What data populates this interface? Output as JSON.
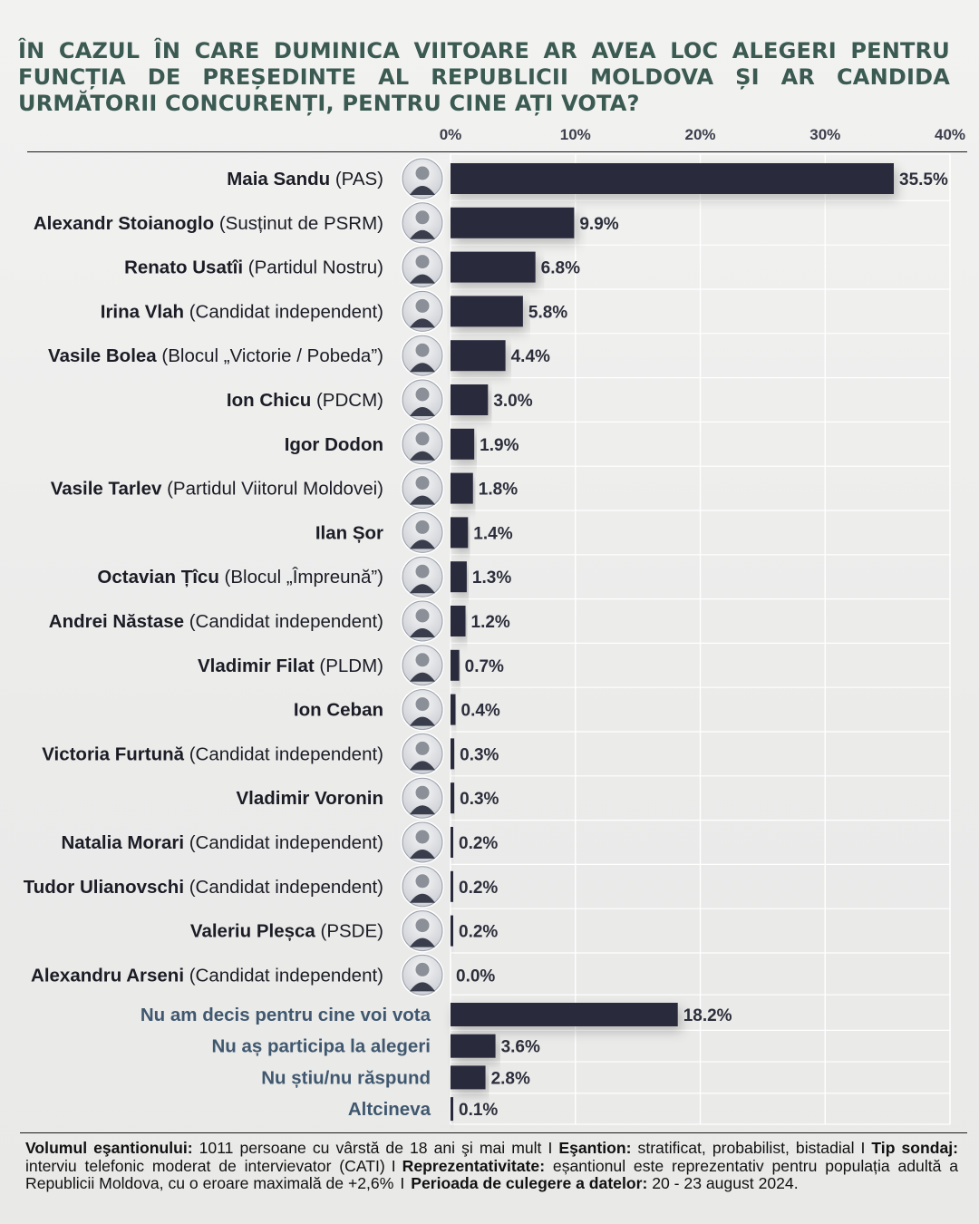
{
  "title": "ÎN CAZUL ÎN CARE DUMINICA VIITOARE AR AVEA LOC ALEGERI PENTRU FUNCȚIA DE PREȘEDINTE AL REPUBLICII MOLDOVA ȘI AR CANDIDA URMĂTORII CONCURENȚI, PENTRU CINE AȚI VOTA?",
  "colors": {
    "bar": "#292b3d",
    "title": "#3b5a52",
    "grid": "#ffffff"
  },
  "chart_data": {
    "type": "bar",
    "orientation": "horizontal",
    "xlim": [
      0,
      40
    ],
    "x_ticks": [
      "0%",
      "10%",
      "20%",
      "30%",
      "40%"
    ],
    "grid": true,
    "categories": [
      {
        "name": "Maia Sandu",
        "party": "(PAS)",
        "value": 35.5,
        "label": "35.5%",
        "photo": true
      },
      {
        "name": "Alexandr Stoianoglo",
        "party": "(Susținut de PSRM)",
        "value": 9.9,
        "label": "9.9%",
        "photo": true
      },
      {
        "name": "Renato Usatîi",
        "party": "(Partidul Nostru)",
        "value": 6.8,
        "label": "6.8%",
        "photo": true
      },
      {
        "name": "Irina Vlah",
        "party": "(Candidat independent)",
        "value": 5.8,
        "label": "5.8%",
        "photo": true
      },
      {
        "name": "Vasile Bolea",
        "party": "(Blocul „Victorie / Pobeda”)",
        "value": 4.4,
        "label": "4.4%",
        "photo": true
      },
      {
        "name": "Ion Chicu",
        "party": "(PDCM)",
        "value": 3.0,
        "label": "3.0%",
        "photo": true
      },
      {
        "name": "Igor Dodon",
        "party": "",
        "value": 1.9,
        "label": "1.9%",
        "photo": true
      },
      {
        "name": "Vasile Tarlev",
        "party": "(Partidul Viitorul Moldovei)",
        "value": 1.8,
        "label": "1.8%",
        "photo": true
      },
      {
        "name": "Ilan Șor",
        "party": "",
        "value": 1.4,
        "label": "1.4%",
        "photo": true
      },
      {
        "name": "Octavian Țîcu",
        "party": "(Blocul „Împreună”)",
        "value": 1.3,
        "label": "1.3%",
        "photo": true
      },
      {
        "name": "Andrei Năstase",
        "party": "(Candidat independent)",
        "value": 1.2,
        "label": "1.2%",
        "photo": true
      },
      {
        "name": "Vladimir Filat",
        "party": "(PLDM)",
        "value": 0.7,
        "label": "0.7%",
        "photo": true
      },
      {
        "name": "Ion Ceban",
        "party": "",
        "value": 0.4,
        "label": "0.4%",
        "photo": true
      },
      {
        "name": "Victoria  Furtună",
        "party": "(Candidat independent)",
        "value": 0.3,
        "label": "0.3%",
        "photo": true
      },
      {
        "name": "Vladimir Voronin",
        "party": "",
        "value": 0.3,
        "label": "0.3%",
        "photo": true
      },
      {
        "name": "Natalia Morari",
        "party": "(Candidat independent)",
        "value": 0.2,
        "label": "0.2%",
        "photo": true
      },
      {
        "name": "Tudor Ulianovschi",
        "party": "(Candidat independent)",
        "value": 0.2,
        "label": "0.2%",
        "photo": true
      },
      {
        "name": "Valeriu Pleșca",
        "party": "(PSDE)",
        "value": 0.2,
        "label": "0.2%",
        "photo": true
      },
      {
        "name": "Alexandru Arseni",
        "party": "(Candidat independent)",
        "value": 0.0,
        "label": "0.0%",
        "photo": true
      },
      {
        "name": "Nu am decis pentru cine voi vota",
        "party": "",
        "value": 18.2,
        "label": "18.2%",
        "photo": false
      },
      {
        "name": "Nu aș participa la alegeri",
        "party": "",
        "value": 3.6,
        "label": "3.6%",
        "photo": false
      },
      {
        "name": "Nu știu/nu răspund",
        "party": "",
        "value": 2.8,
        "label": "2.8%",
        "photo": false
      },
      {
        "name": "Altcineva",
        "party": "",
        "value": 0.1,
        "label": "0.1%",
        "photo": false
      }
    ]
  },
  "footer": {
    "sample_label": "Volumul eşantionului:",
    "sample_value": "1011 persoane cu vârstă de 18 ani şi mai mult",
    "sampling_label": "Eşantion:",
    "sampling_value": "stratificat, probabilist, bistadial",
    "type_label": "Tip sondaj:",
    "type_value": "interviu telefonic moderat de intervievator (CATI)",
    "repr_label": "Reprezentativitate:",
    "repr_value": "eșantionul este reprezentativ pentru populația adultă a Republicii Moldova, cu o eroare maximală de +2,6%",
    "period_label": "Perioada de culegere a datelor:",
    "period_value": "20 - 23 august 2024.",
    "separator": "I"
  }
}
